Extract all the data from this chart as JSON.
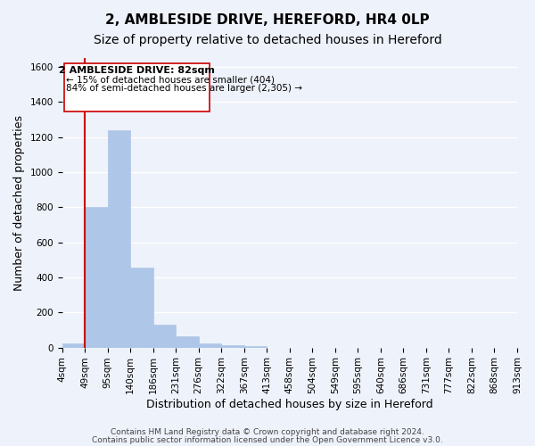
{
  "title": "2, AMBLESIDE DRIVE, HEREFORD, HR4 0LP",
  "subtitle": "Size of property relative to detached houses in Hereford",
  "xlabel": "Distribution of detached houses by size in Hereford",
  "ylabel": "Number of detached properties",
  "bar_values": [
    25,
    800,
    1240,
    455,
    130,
    65,
    25,
    15,
    10,
    0,
    0,
    0,
    0,
    0,
    0,
    0,
    0,
    0,
    0,
    0
  ],
  "bar_labels": [
    "4sqm",
    "49sqm",
    "95sqm",
    "140sqm",
    "186sqm",
    "231sqm",
    "276sqm",
    "322sqm",
    "367sqm",
    "413sqm",
    "458sqm",
    "504sqm",
    "549sqm",
    "595sqm",
    "640sqm",
    "686sqm",
    "731sqm",
    "777sqm",
    "822sqm",
    "868sqm",
    "913sqm"
  ],
  "bar_color": "#aec6e8",
  "bar_edge_color": "#aec6e8",
  "property_line_x": 1,
  "property_line_color": "#cc0000",
  "annotation_line1": "2 AMBLESIDE DRIVE: 82sqm",
  "annotation_line2": "← 15% of detached houses are smaller (404)",
  "annotation_line3": "84% of semi-detached houses are larger (2,305) →",
  "annotation_box_color": "#ffffff",
  "annotation_box_edge_color": "#cc0000",
  "ylim": [
    0,
    1650
  ],
  "yticks": [
    0,
    200,
    400,
    600,
    800,
    1000,
    1200,
    1400,
    1600
  ],
  "footnote1": "Contains HM Land Registry data © Crown copyright and database right 2024.",
  "footnote2": "Contains public sector information licensed under the Open Government Licence v3.0.",
  "background_color": "#eef2fb",
  "grid_color": "#ffffff",
  "title_fontsize": 11,
  "subtitle_fontsize": 10,
  "axis_fontsize": 9,
  "tick_fontsize": 7.5,
  "footnote_fontsize": 6.5
}
